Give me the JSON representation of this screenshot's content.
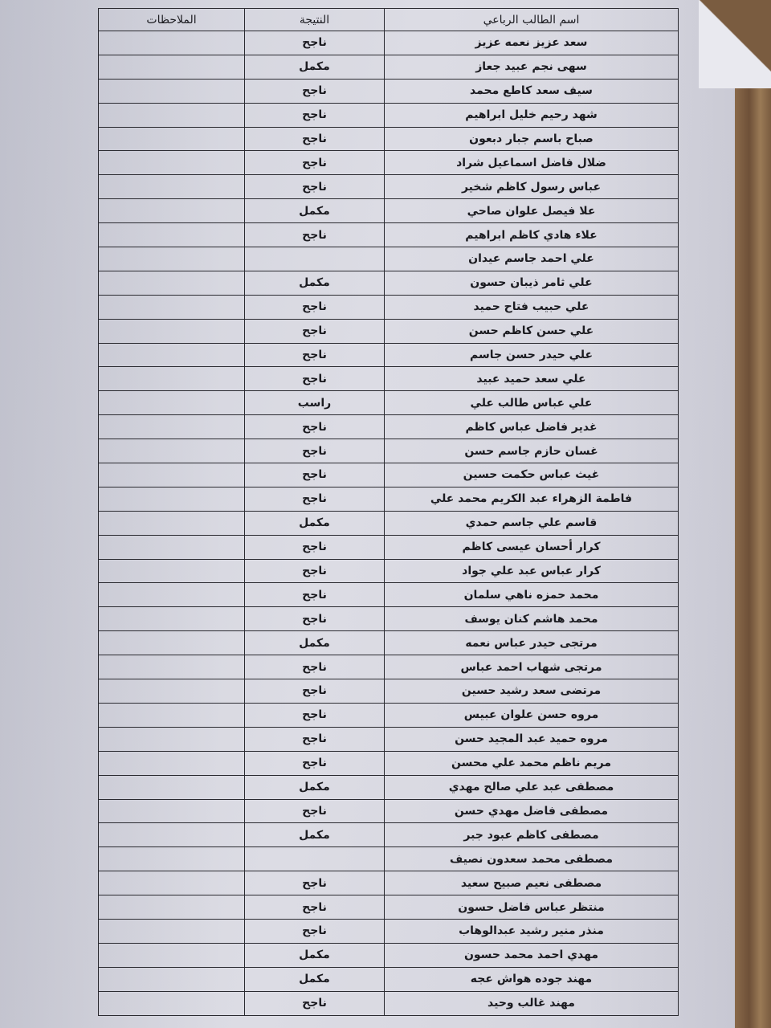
{
  "table": {
    "header": [
      "اسم الطالب الرباعي",
      "النتيجة",
      "الملاحظات"
    ],
    "rows": [
      [
        "سعد عزيز نعمه عزيز",
        "ناجح"
      ],
      [
        "سهى نجم عبيد جعاز",
        "مكمل"
      ],
      [
        "سيف سعد كاطع محمد",
        "ناجح"
      ],
      [
        "شهد رحيم خليل ابراهيم",
        "ناجح"
      ],
      [
        "صباح باسم جبار دبعون",
        "ناجح"
      ],
      [
        "ضلال فاضل اسماعيل شراد",
        "ناجح"
      ],
      [
        "عباس رسول كاظم شخير",
        "ناجح"
      ],
      [
        "علا فيصل علوان صاحي",
        "مكمل"
      ],
      [
        "علاء هادي كاظم ابراهيم",
        "ناجح"
      ],
      [
        "علي احمد جاسم عيدان"
      ],
      [
        "علي ثامر ذيبان حسون",
        "مكمل"
      ],
      [
        "علي حبيب فتاح حميد",
        "ناجح"
      ],
      [
        "علي حسن كاظم حسن",
        "ناجح"
      ],
      [
        "علي حيدر حسن جاسم",
        "ناجح"
      ],
      [
        "علي سعد حميد عبيد",
        "ناجح"
      ],
      [
        "علي عباس طالب علي",
        "راسب"
      ],
      [
        "غدير فاضل عباس كاظم",
        "ناجح"
      ],
      [
        "غسان حازم جاسم حسن",
        "ناجح"
      ],
      [
        "غيث عباس حكمت حسين",
        "ناجح"
      ],
      [
        "فاطمة الزهراء عبد الكريم محمد علي",
        "ناجح"
      ],
      [
        "قاسم علي جاسم حمدي",
        "مكمل"
      ],
      [
        "كرار أحسان عيسى كاظم",
        "ناجح"
      ],
      [
        "كرار عباس عبد علي جواد",
        "ناجح"
      ],
      [
        "محمد حمزه ناهي سلمان",
        "ناجح"
      ],
      [
        "محمد هاشم كنان يوسف",
        "ناجح"
      ],
      [
        "مرتجى حيدر عباس نعمه",
        "مكمل"
      ],
      [
        "مرتجى شهاب احمد عباس",
        "ناجح"
      ],
      [
        "مرتضى سعد رشيد حسين",
        "ناجح"
      ],
      [
        "مروه حسن علوان عبيس",
        "ناجح"
      ],
      [
        "مروه حميد عبد المجيد حسن",
        "ناجح"
      ],
      [
        "مريم ناظم محمد علي محسن",
        "ناجح"
      ],
      [
        "مصطفى عبد علي صالح مهدي",
        "مكمل"
      ],
      [
        "مصطفى فاضل مهدي حسن",
        "ناجح"
      ],
      [
        "مصطفى كاظم عبود جبر",
        "مكمل"
      ],
      [
        "مصطفى محمد سعدون نصيف"
      ],
      [
        "مصطفى نعيم صبيح سعيد",
        "ناجح"
      ],
      [
        "منتظر عباس فاضل حسون",
        "ناجح"
      ],
      [
        "منذر منير رشيد عبدالوهاب",
        "ناجح"
      ],
      [
        "مهدي احمد محمد حسون",
        "مكمل"
      ],
      [
        "مهند جوده هواش عجه",
        "مكمل"
      ],
      [
        "مهند غالب وحيد",
        "ناجح"
      ]
    ]
  }
}
